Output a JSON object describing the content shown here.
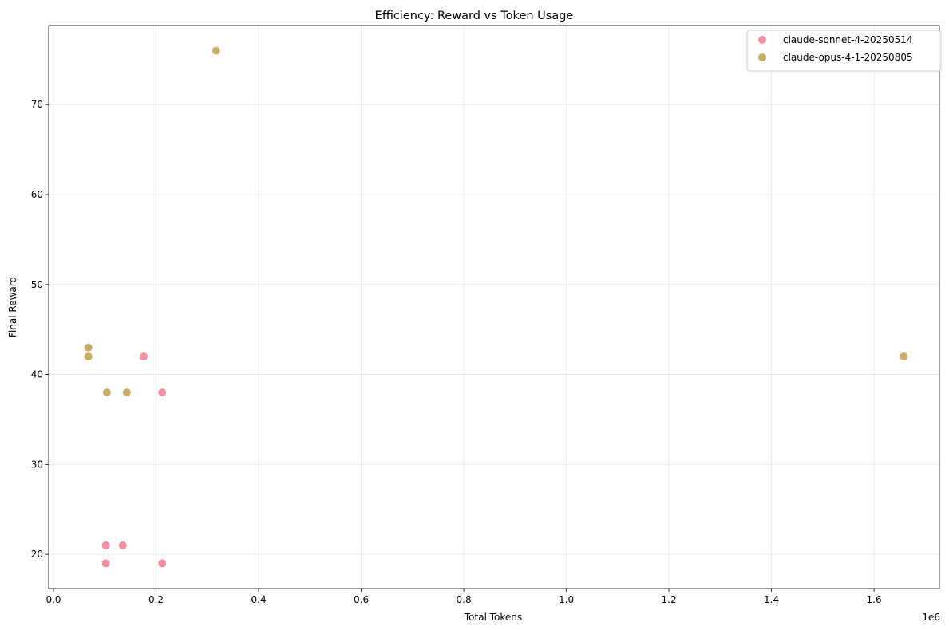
{
  "chart_data": {
    "type": "scatter",
    "title": "Efficiency: Reward vs Token Usage",
    "xlabel": "Total Tokens",
    "ylabel": "Final Reward",
    "x_offset_label": "1e6",
    "xlim": [
      -0.0094,
      1.7275
    ],
    "ylim": [
      16.2,
      78.8
    ],
    "x_ticks": [
      0.0,
      0.2,
      0.4,
      0.6,
      0.8,
      1.0,
      1.2,
      1.4,
      1.6
    ],
    "x_tick_labels": [
      "0.0",
      "0.2",
      "0.4",
      "0.6",
      "0.8",
      "1.0",
      "1.2",
      "1.4",
      "1.6"
    ],
    "y_ticks": [
      20,
      30,
      40,
      50,
      60,
      70
    ],
    "y_tick_labels": [
      "20",
      "30",
      "40",
      "50",
      "60",
      "70"
    ],
    "grid": true,
    "legend_position": "top-right",
    "series": [
      {
        "name": "claude-sonnet-4-20250514",
        "color": "#f08a9e",
        "points": [
          {
            "x": 0.176,
            "y": 42
          },
          {
            "x": 0.212,
            "y": 38
          },
          {
            "x": 0.102,
            "y": 21
          },
          {
            "x": 0.135,
            "y": 21
          },
          {
            "x": 0.102,
            "y": 19
          },
          {
            "x": 0.212,
            "y": 19
          }
        ]
      },
      {
        "name": "claude-opus-4-1-20250805",
        "color": "#c5aa5c",
        "points": [
          {
            "x": 0.317,
            "y": 76
          },
          {
            "x": 0.068,
            "y": 43
          },
          {
            "x": 0.068,
            "y": 42
          },
          {
            "x": 0.104,
            "y": 38
          },
          {
            "x": 0.143,
            "y": 38
          },
          {
            "x": 1.658,
            "y": 42
          }
        ]
      }
    ]
  }
}
